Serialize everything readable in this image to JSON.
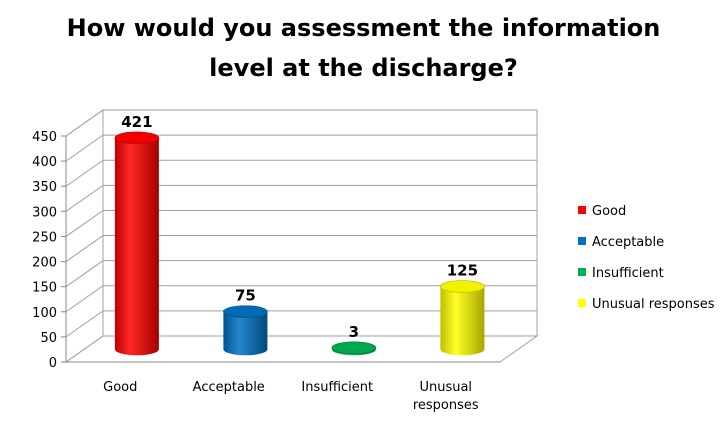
{
  "chart_data": {
    "type": "bar",
    "title_lines": [
      "How would you assessment the information",
      "level at the discharge?"
    ],
    "categories": [
      {
        "lines": [
          "Good"
        ]
      },
      {
        "lines": [
          "Acceptable"
        ]
      },
      {
        "lines": [
          "Insufficient"
        ]
      },
      {
        "lines": [
          "Unusual",
          "responses"
        ]
      }
    ],
    "values": [
      421,
      75,
      3,
      125
    ],
    "data_labels": [
      "421",
      "75",
      "3",
      "125"
    ],
    "colors": [
      "#ff0000",
      "#0070c0",
      "#00b050",
      "#ffff00"
    ],
    "legend": [
      "Good",
      "Acceptable",
      "Insufficient",
      "Unusual responses"
    ],
    "legend_position": "right",
    "ylim": [
      0,
      450
    ],
    "yticks": [
      0,
      50,
      100,
      150,
      200,
      250,
      300,
      350,
      400,
      450
    ],
    "grid": true,
    "style": "3d-cylinder"
  }
}
